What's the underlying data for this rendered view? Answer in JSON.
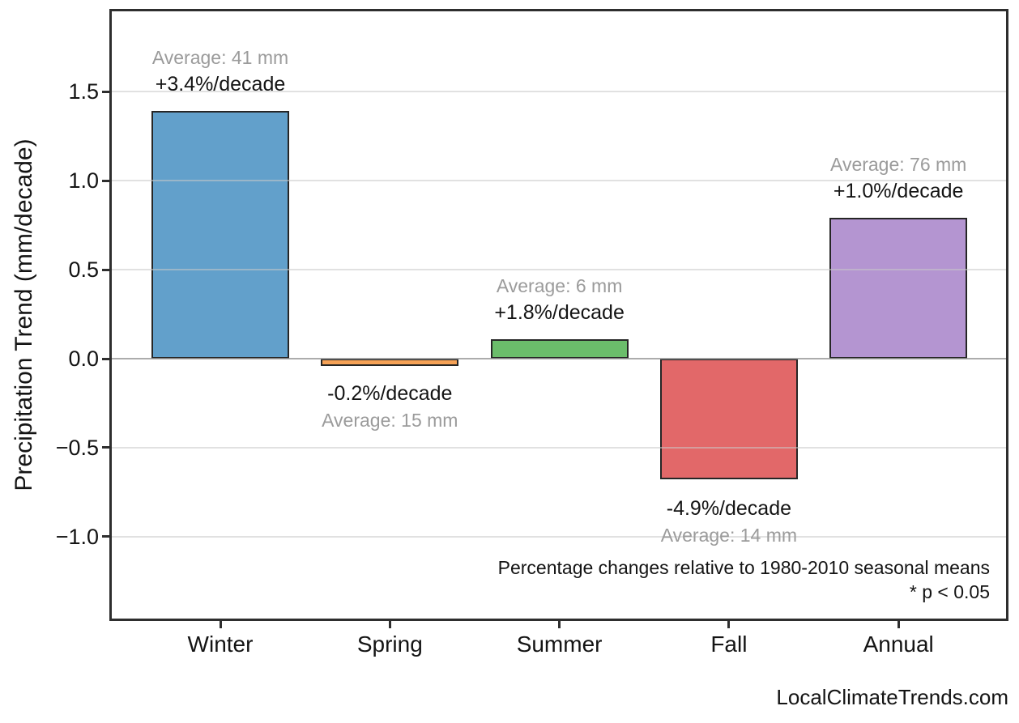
{
  "footer": {
    "brand": "LocalClimateTrends.com"
  },
  "chart_data": {
    "type": "bar",
    "title": "",
    "xlabel": "",
    "ylabel": "Precipitation Trend (mm/decade)",
    "categories": [
      "Winter",
      "Spring",
      "Summer",
      "Fall",
      "Annual"
    ],
    "values": [
      1.39,
      -0.03,
      0.11,
      -0.68,
      0.79
    ],
    "bar_colors": [
      "#62A0CB",
      "#F6A256",
      "#6BBD6B",
      "#E26869",
      "#B495D1"
    ],
    "bar_labels": [
      {
        "percent": "+3.4%/decade",
        "average": "Average: 41 mm"
      },
      {
        "percent": "-0.2%/decade",
        "average": "Average: 15 mm"
      },
      {
        "percent": "+1.8%/decade",
        "average": "Average: 6 mm"
      },
      {
        "percent": "-4.9%/decade",
        "average": "Average: 14 mm"
      },
      {
        "percent": "+1.0%/decade",
        "average": "Average: 76 mm"
      }
    ],
    "yticks": [
      {
        "value": 1.5,
        "label": "1.5"
      },
      {
        "value": 1.0,
        "label": "1.0"
      },
      {
        "value": 0.5,
        "label": "0.5"
      },
      {
        "value": 0.0,
        "label": "0.0"
      },
      {
        "value": -0.5,
        "label": "−0.5"
      },
      {
        "value": -1.0,
        "label": "−1.0"
      }
    ],
    "ylim": [
      -1.46,
      1.95
    ],
    "grid": true,
    "legend": "none",
    "annotations": [
      "Percentage changes relative to 1980-2010 seasonal means",
      "* p < 0.05"
    ],
    "colors": {
      "bar_edge": "#262626",
      "grid_line": "rgba(200,200,200,0.55)",
      "zero_line": "#8a8a8a",
      "percent_text": "#141414",
      "average_text": "#9b9b9b"
    }
  }
}
